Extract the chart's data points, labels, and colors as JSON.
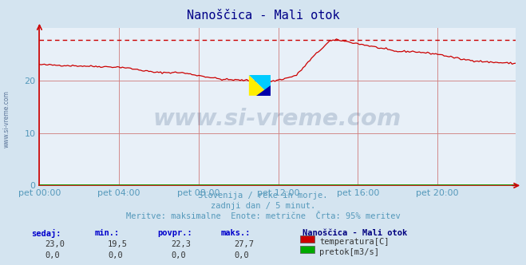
{
  "title": "Nanoščica - Mali otok",
  "background_color": "#d4e4f0",
  "plot_background": "#e8f0f8",
  "grid_color": "#d08080",
  "ylim": [
    0,
    30
  ],
  "yticks": [
    0,
    10,
    20
  ],
  "xlim": [
    0,
    287
  ],
  "xtick_labels": [
    "pet 00:00",
    "pet 04:00",
    "pet 08:00",
    "pet 12:00",
    "pet 16:00",
    "pet 20:00"
  ],
  "xtick_positions": [
    0,
    48,
    96,
    144,
    192,
    240
  ],
  "line_color": "#cc0000",
  "line_color2": "#00aa00",
  "dashed_line_color": "#cc0000",
  "dashed_line_y": 27.7,
  "watermark_text": "www.si-vreme.com",
  "watermark_color": "#1a3a6b",
  "watermark_alpha": 0.18,
  "subtitle1": "Slovenija / reke in morje.",
  "subtitle2": "zadnji dan / 5 minut.",
  "subtitle3": "Meritve: maksimalne  Enote: metrične  Črta: 95% meritev",
  "subtitle_color": "#5599bb",
  "legend_title": "Nanoščica - Mali otok",
  "legend_items": [
    "temperatura[C]",
    "pretok[m3/s]"
  ],
  "legend_colors": [
    "#cc0000",
    "#00aa00"
  ],
  "stats_headers": [
    "sedaj:",
    "min.:",
    "povpr.:",
    "maks.:"
  ],
  "stats_values1": [
    "23,0",
    "19,5",
    "22,3",
    "27,7"
  ],
  "stats_values2": [
    "0,0",
    "0,0",
    "0,0",
    "0,0"
  ],
  "axis_color": "#cc0000",
  "tick_color": "#5599bb",
  "left_label": "www.si-vreme.com",
  "logo_colors": {
    "yellow": "#ffee00",
    "cyan": "#00ccff",
    "blue": "#0000aa"
  }
}
